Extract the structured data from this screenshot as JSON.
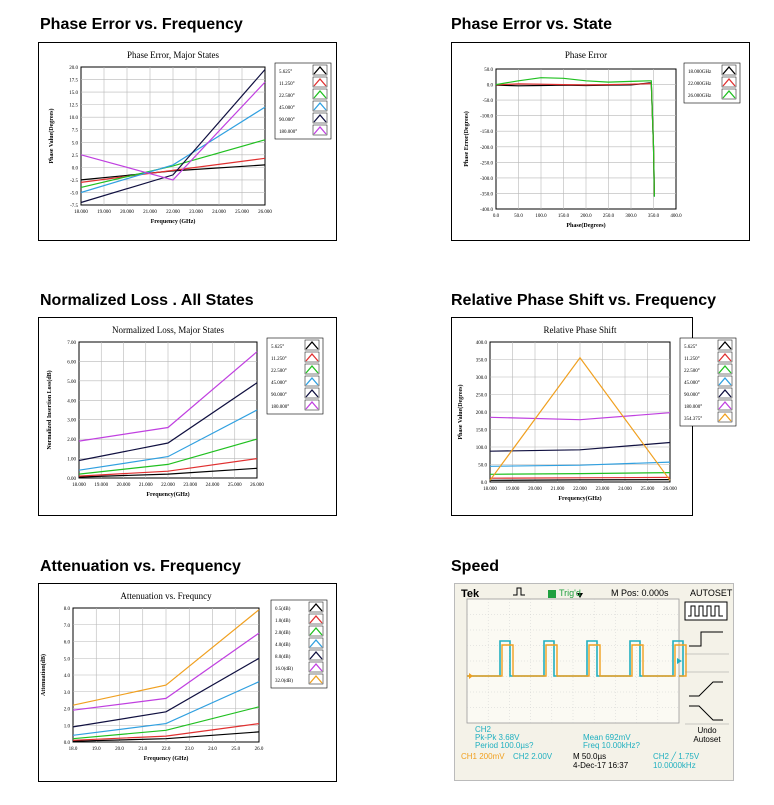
{
  "headings": {
    "phase_error_freq": "Phase Error vs. Frequency",
    "phase_error_state": "Phase Error vs. State",
    "normalized_loss": "Normalized Loss . All States",
    "relative_phase": "Relative Phase Shift vs. Frequency",
    "attenuation": "Attenuation vs.  Frequency",
    "speed": "Speed"
  },
  "chart_data": [
    {
      "id": "c1",
      "type": "line",
      "title": "Phase Error, Major States",
      "xlabel": "Frequency (GHz)",
      "ylabel": "Phase Value(Degrees)",
      "xlim": [
        18,
        26
      ],
      "ylim": [
        -7.5,
        20
      ],
      "xticks": [
        "18.000",
        "19.000",
        "20.000",
        "21.000",
        "22.000",
        "23.000",
        "24.000",
        "25.000",
        "26.000"
      ],
      "yticks": [
        "-7.5",
        "-5.0",
        "-2.5",
        "0.0",
        "2.5",
        "5.0",
        "7.5",
        "10.0",
        "12.5",
        "15.0",
        "17.5",
        "20.0"
      ],
      "grid": true,
      "legend": "right",
      "x": [
        18,
        22,
        26
      ],
      "series": [
        {
          "name": "5.625°",
          "color": "#000000",
          "values": [
            -2.5,
            -0.7,
            0.5
          ]
        },
        {
          "name": "11.250°",
          "color": "#e03030",
          "values": [
            -3.0,
            -0.6,
            1.8
          ]
        },
        {
          "name": "22.500°",
          "color": "#20c020",
          "values": [
            -4.0,
            0.3,
            5.5
          ]
        },
        {
          "name": "45.000°",
          "color": "#30a0e0",
          "values": [
            -5.0,
            0.5,
            12.0
          ]
        },
        {
          "name": "90.000°",
          "color": "#101040",
          "values": [
            -7.0,
            -1.5,
            19.5
          ]
        },
        {
          "name": "180.000°",
          "color": "#c040e0",
          "values": [
            2.5,
            -2.5,
            17.0
          ]
        }
      ]
    },
    {
      "id": "c2",
      "type": "line",
      "title": "Phase Error",
      "xlabel": "Phase(Degrees)",
      "ylabel": "Phase Error(Degrees)",
      "xlim": [
        0,
        400
      ],
      "ylim": [
        -400,
        50
      ],
      "xticks": [
        "0.0",
        "50.0",
        "100.0",
        "150.0",
        "200.0",
        "250.0",
        "300.0",
        "350.0",
        "400.0"
      ],
      "yticks": [
        "50.0",
        "0.0",
        "-50.0",
        "-100.0",
        "-150.0",
        "-200.0",
        "-250.0",
        "-300.0",
        "-350.0",
        "-400.0"
      ],
      "grid": true,
      "legend": "right",
      "series": [
        {
          "name": "18.000GHz",
          "color": "#000000",
          "x": [
            0,
            50,
            100,
            150,
            200,
            250,
            300,
            340,
            345,
            350,
            352
          ],
          "values": [
            -2,
            -4,
            -3,
            -2,
            -3,
            -2,
            -1,
            5,
            5,
            -200,
            -360
          ]
        },
        {
          "name": "22.000GHz",
          "color": "#e03030",
          "x": [
            0,
            50,
            100,
            150,
            200,
            250,
            300,
            340,
            345,
            350,
            352
          ],
          "values": [
            -1,
            2,
            1,
            0,
            -1,
            0,
            1,
            3,
            3,
            -200,
            -355
          ]
        },
        {
          "name": "26.000GHz",
          "color": "#20c020",
          "x": [
            0,
            50,
            100,
            150,
            200,
            250,
            300,
            340,
            345,
            350,
            352
          ],
          "values": [
            0,
            12,
            22,
            20,
            12,
            8,
            10,
            12,
            12,
            -200,
            -360
          ]
        }
      ]
    },
    {
      "id": "c3",
      "type": "line",
      "title": "Normalized Loss, Major States",
      "xlabel": "Frequency(GHz)",
      "ylabel": "Normalized Insertion Loss(dB)",
      "xlim": [
        18,
        26
      ],
      "ylim": [
        0,
        7
      ],
      "xticks": [
        "18.000",
        "19.000",
        "20.000",
        "21.000",
        "22.000",
        "23.000",
        "24.000",
        "25.000",
        "26.000"
      ],
      "yticks": [
        "0.00",
        "1.00",
        "2.00",
        "3.00",
        "4.00",
        "5.00",
        "6.00",
        "7.00"
      ],
      "grid": true,
      "legend": "right",
      "x": [
        18,
        22,
        26
      ],
      "series": [
        {
          "name": "5.625°",
          "color": "#000000",
          "values": [
            0.05,
            0.2,
            0.5
          ]
        },
        {
          "name": "11.250°",
          "color": "#e03030",
          "values": [
            0.1,
            0.35,
            1.0
          ]
        },
        {
          "name": "22.500°",
          "color": "#20c020",
          "values": [
            0.2,
            0.7,
            2.0
          ]
        },
        {
          "name": "45.000°",
          "color": "#30a0e0",
          "values": [
            0.4,
            1.1,
            3.5
          ]
        },
        {
          "name": "90.000°",
          "color": "#101040",
          "values": [
            0.9,
            1.8,
            4.9
          ]
        },
        {
          "name": "180.000°",
          "color": "#c040e0",
          "values": [
            1.9,
            2.6,
            6.5
          ]
        }
      ]
    },
    {
      "id": "c4",
      "type": "line",
      "title": "Relative Phase Shift",
      "xlabel": "Frequency(GHz)",
      "ylabel": "Phase Value(Degrees)",
      "xlim": [
        18,
        26
      ],
      "ylim": [
        0,
        400
      ],
      "xticks": [
        "18.000",
        "19.000",
        "20.000",
        "21.000",
        "22.000",
        "23.000",
        "24.000",
        "25.000",
        "26.000"
      ],
      "yticks": [
        "0.0",
        "50.0",
        "100.0",
        "150.0",
        "200.0",
        "250.0",
        "300.0",
        "350.0",
        "400.0"
      ],
      "grid": true,
      "legend": "right",
      "x": [
        18,
        22,
        26
      ],
      "series": [
        {
          "name": "5.625°",
          "color": "#000000",
          "values": [
            5,
            6,
            7
          ]
        },
        {
          "name": "11.250°",
          "color": "#e03030",
          "values": [
            11,
            12,
            13
          ]
        },
        {
          "name": "22.500°",
          "color": "#20c020",
          "values": [
            22,
            24,
            27
          ]
        },
        {
          "name": "45.000°",
          "color": "#30a0e0",
          "values": [
            45,
            48,
            57
          ]
        },
        {
          "name": "90.000°",
          "color": "#101040",
          "values": [
            88,
            92,
            113
          ]
        },
        {
          "name": "180.000°",
          "color": "#c040e0",
          "values": [
            185,
            178,
            198
          ]
        },
        {
          "name": "354.375°",
          "color": "#f0a020",
          "values": [
            5,
            355,
            5
          ]
        }
      ]
    },
    {
      "id": "c5",
      "type": "line",
      "title": "Attenuation vs. Frequncy",
      "xlabel": "Frequency (GHz)",
      "ylabel": "Attenuation(dB)",
      "xlim": [
        18,
        26
      ],
      "ylim": [
        0,
        8
      ],
      "xticks": [
        "18.0",
        "19.0",
        "20.0",
        "21.0",
        "22.0",
        "23.0",
        "24.0",
        "25.0",
        "26.0"
      ],
      "yticks": [
        "0.0",
        "1.0",
        "2.0",
        "3.0",
        "4.0",
        "5.0",
        "6.0",
        "7.0",
        "8.0"
      ],
      "grid": true,
      "legend": "right",
      "x": [
        18,
        22,
        26
      ],
      "series": [
        {
          "name": "0.5(dB)",
          "color": "#000000",
          "values": [
            0.05,
            0.2,
            0.6
          ]
        },
        {
          "name": "1.0(dB)",
          "color": "#e03030",
          "values": [
            0.1,
            0.35,
            1.1
          ]
        },
        {
          "name": "2.0(dB)",
          "color": "#20c020",
          "values": [
            0.2,
            0.7,
            2.1
          ]
        },
        {
          "name": "4.0(dB)",
          "color": "#30a0e0",
          "values": [
            0.4,
            1.1,
            3.6
          ]
        },
        {
          "name": "8.0(dB)",
          "color": "#101040",
          "values": [
            0.9,
            1.8,
            5.0
          ]
        },
        {
          "name": "16.0(dB)",
          "color": "#c040e0",
          "values": [
            1.9,
            2.6,
            6.5
          ]
        },
        {
          "name": "32.0(dB)",
          "color": "#f0a020",
          "values": [
            2.2,
            3.4,
            7.9
          ]
        }
      ]
    }
  ],
  "scope": {
    "brand": "Tek",
    "trig": "Trig'd",
    "mpos": "M Pos: 0.000s",
    "autoset": "AUTOSET",
    "undo": "Undo",
    "undo2": "Autoset",
    "ch2_label": "CH2",
    "pk_pk": "Pk-Pk 3.68V",
    "period": "Period 100.0µs?",
    "mean": "Mean 692mV",
    "freq": "Freq 10.00kHz?",
    "ch1": "CH1  200mV",
    "ch2": "CH2  2.00V",
    "m": "M 50.0µs",
    "date": "4-Dec-17 16:37",
    "ch2b": "CH2 ╱ 1.75V",
    "freq2": "10.0000kHz",
    "colors": {
      "bg": "#f4f2e8",
      "cyan": "#20b0c0",
      "orange": "#f0a020",
      "grid": "#c8c8c8"
    }
  }
}
